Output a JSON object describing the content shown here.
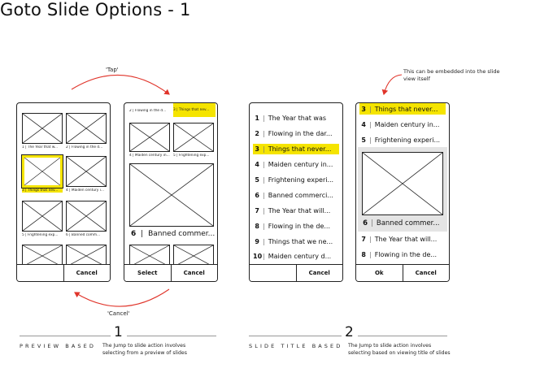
{
  "title": "Goto Slide Options - 1",
  "arrows": {
    "tap_label": "'Tap'",
    "cancel_label": "'Cancel'"
  },
  "note": "This can be embedded into the slide view itself",
  "screen1": {
    "captions": [
      "1 | The Year that w...",
      "2 | Flowing in the d...",
      "3 | Things that nev...",
      "4 | Maiden century i...",
      "5 | Frightening exp...",
      "6 | Banned comm..."
    ],
    "soft_left": "",
    "soft_right": "Cancel"
  },
  "screen2": {
    "captions": [
      "2 | Flowing in the d...",
      "3 | Things that nev...",
      "4 | Maiden century in...",
      "5 | Frightening exp..."
    ],
    "big_caption_num": "6",
    "big_caption_text": "Banned commer...",
    "soft_left": "Select",
    "soft_right": "Cancel"
  },
  "screen3": {
    "items": [
      {
        "n": "1",
        "text": "The Year that was"
      },
      {
        "n": "2",
        "text": "Flowing in the dar..."
      },
      {
        "n": "3",
        "text": "Things that never..."
      },
      {
        "n": "4",
        "text": "Maiden century in..."
      },
      {
        "n": "5",
        "text": "Frightening experi..."
      },
      {
        "n": "6",
        "text": "Banned commerci..."
      },
      {
        "n": "7",
        "text": "The Year that will..."
      },
      {
        "n": "8",
        "text": "Flowing in the de..."
      },
      {
        "n": "9",
        "text": "Things that we ne..."
      },
      {
        "n": "10",
        "text": "Maiden century d..."
      }
    ],
    "soft_left": "",
    "soft_right": "Cancel"
  },
  "screen4": {
    "items_top": [
      {
        "n": "3",
        "text": "Things that never..."
      },
      {
        "n": "4",
        "text": "Maiden century in..."
      },
      {
        "n": "5",
        "text": "Frightening experi..."
      }
    ],
    "preview_item": {
      "n": "6",
      "text": "Banned commer..."
    },
    "items_bottom": [
      {
        "n": "7",
        "text": "The Year that will..."
      },
      {
        "n": "8",
        "text": "Flowing in the de..."
      }
    ],
    "soft_left": "Ok",
    "soft_right": "Cancel"
  },
  "section1": {
    "number": "1",
    "heading": "PREVIEW BASED",
    "description": "The Jump to slide action involves selecting from a preview of slides"
  },
  "section2": {
    "number": "2",
    "heading": "SLIDE TITLE BASED",
    "description": "The Jump to slide action involves selecting based on viewing title of slides"
  },
  "colors": {
    "highlight": "#f5e400",
    "arrow": "#e0342a"
  }
}
